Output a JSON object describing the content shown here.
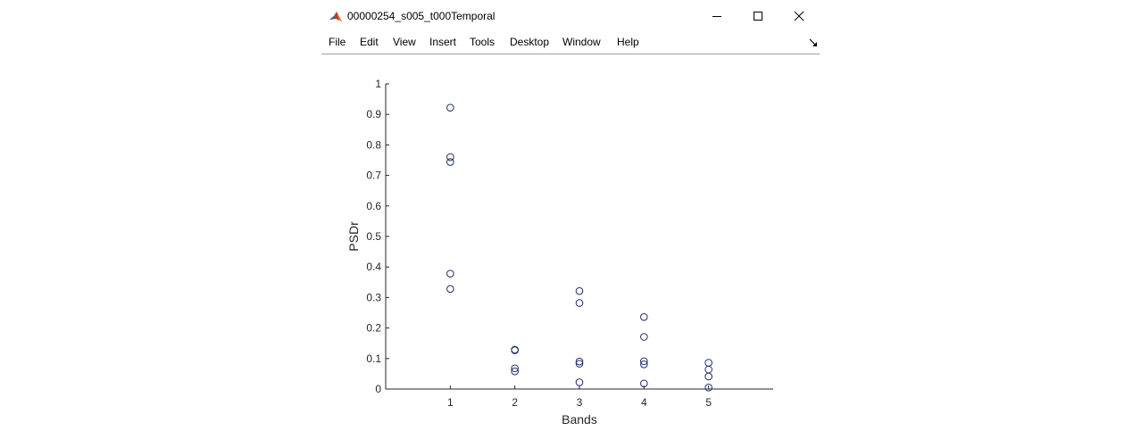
{
  "window": {
    "title": "00000254_s005_t000Temporal",
    "icon": "matlab-icon"
  },
  "menu": {
    "items": [
      "File",
      "Edit",
      "View",
      "Insert",
      "Tools",
      "Desktop",
      "Window",
      "Help"
    ]
  },
  "colors": {
    "marker": "#1f2d6b",
    "axis": "#262626"
  },
  "chart_data": {
    "type": "scatter",
    "xlabel": "Bands",
    "ylabel": "PSDr",
    "xlim": [
      0,
      6
    ],
    "ylim": [
      0,
      1
    ],
    "xticks": [
      "1",
      "2",
      "3",
      "4",
      "5"
    ],
    "yticks": [
      "0",
      "0.1",
      "0.2",
      "0.3",
      "0.4",
      "0.5",
      "0.6",
      "0.7",
      "0.8",
      "0.9",
      "1"
    ],
    "grid": false,
    "points": [
      {
        "x": 1,
        "y": 0.922
      },
      {
        "x": 1,
        "y": 0.76
      },
      {
        "x": 1,
        "y": 0.744
      },
      {
        "x": 1,
        "y": 0.378
      },
      {
        "x": 1,
        "y": 0.328
      },
      {
        "x": 2,
        "y": 0.129
      },
      {
        "x": 2,
        "y": 0.127
      },
      {
        "x": 2,
        "y": 0.068
      },
      {
        "x": 2,
        "y": 0.058
      },
      {
        "x": 3,
        "y": 0.321
      },
      {
        "x": 3,
        "y": 0.282
      },
      {
        "x": 3,
        "y": 0.09
      },
      {
        "x": 3,
        "y": 0.083
      },
      {
        "x": 3,
        "y": 0.022
      },
      {
        "x": 4,
        "y": 0.236
      },
      {
        "x": 4,
        "y": 0.171
      },
      {
        "x": 4,
        "y": 0.091
      },
      {
        "x": 4,
        "y": 0.081
      },
      {
        "x": 4,
        "y": 0.018
      },
      {
        "x": 5,
        "y": 0.086
      },
      {
        "x": 5,
        "y": 0.064
      },
      {
        "x": 5,
        "y": 0.041
      },
      {
        "x": 5,
        "y": 0.005
      }
    ]
  }
}
